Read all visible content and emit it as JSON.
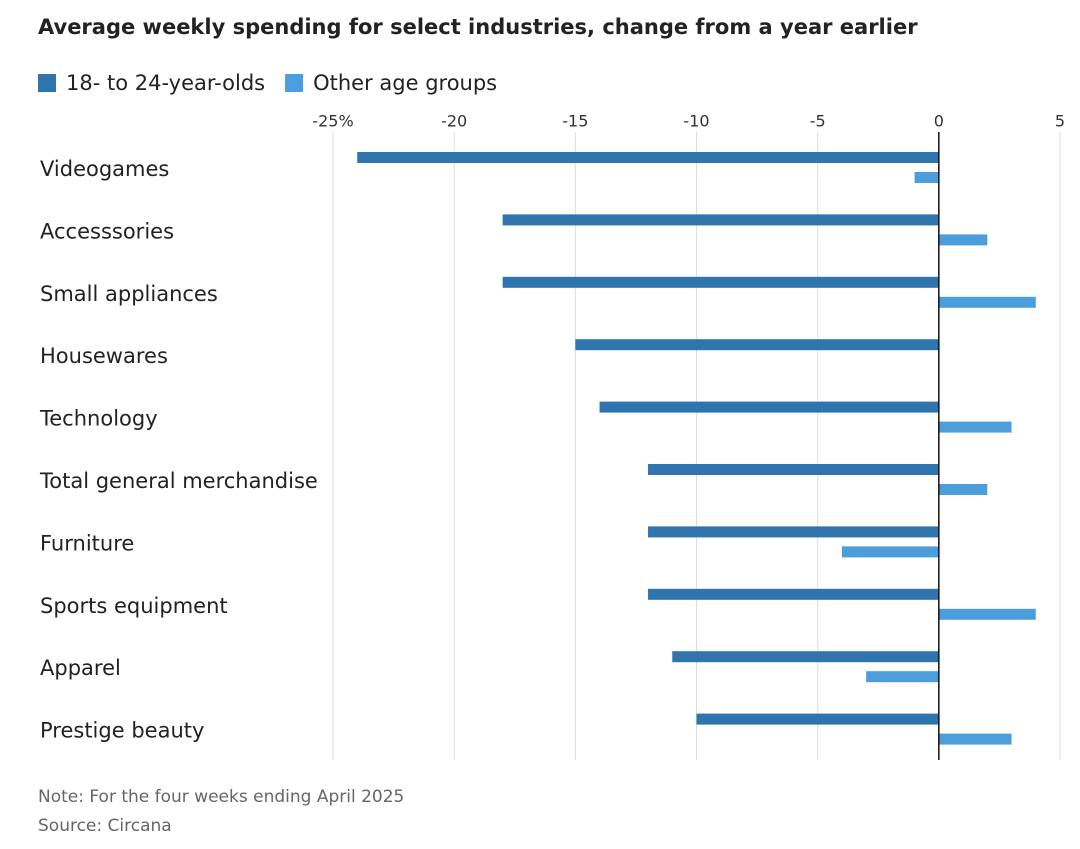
{
  "chart_data": {
    "type": "bar",
    "orientation": "horizontal",
    "title": "Average weekly spending for select industries, change from a year earlier",
    "categories": [
      "Videogames",
      "Accesssories",
      "Small appliances",
      "Housewares",
      "Technology",
      "Total general merchandise",
      "Furniture",
      "Sports equipment",
      "Apparel",
      "Prestige beauty"
    ],
    "series": [
      {
        "name": "18- to 24-year-olds",
        "color": "#2f74ad",
        "values": [
          -24,
          -18,
          -18,
          -15,
          -14,
          -12,
          -12,
          -12,
          -11,
          -10
        ]
      },
      {
        "name": "Other age groups",
        "color": "#4b9ddb",
        "values": [
          -1,
          2,
          4,
          0,
          3,
          2,
          -4,
          4,
          -3,
          3
        ]
      }
    ],
    "xlim": [
      -25,
      5
    ],
    "xticks": [
      {
        "value": -25,
        "label": "-25%"
      },
      -20,
      -15,
      -10,
      -5,
      0,
      5
    ],
    "grid": true,
    "legend": "top-left",
    "note": "Note: For the four weeks ending April 2025",
    "source": "Source: Circana"
  }
}
